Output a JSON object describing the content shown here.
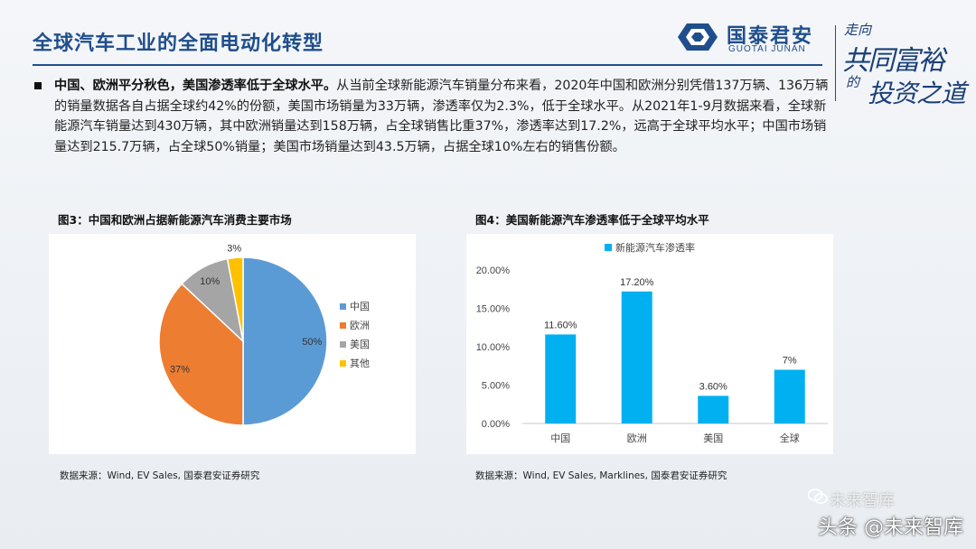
{
  "header": {
    "title": "全球汽车工业的全面电动化转型",
    "logo_cn": "国泰君安",
    "logo_en": "GUOTAI JUNAN",
    "slogan": [
      "走向",
      "共同富裕",
      "的",
      "投资之道"
    ]
  },
  "summary": {
    "lead": "中国、欧洲平分秋色，美国渗透率低于全球水平。",
    "body": "从当前全球新能源汽车销量分布来看，2020年中国和欧洲分别凭借137万辆、136万辆的销量数据各自占据全球约42%的份额，美国市场销量为33万辆，渗透率仅为2.3%，低于全球水平。从2021年1-9月数据来看，全球新能源汽车销量达到430万辆，其中欧洲销量达到158万辆，占全球销售比重37%，渗透率达到17.2%，远高于全球平均水平；中国市场销量达到215.7万辆，占全球50%销量；美国市场销量达到43.5万辆，占据全球10%左右的销售份额。"
  },
  "figure3": {
    "title": "图3：中国和欧洲占据新能源汽车消费主要市场",
    "source": "数据来源：Wind, EV Sales, 国泰君安证券研究"
  },
  "figure4": {
    "title": "图4：美国新能源汽车渗透率低于全球平均水平",
    "source": "数据来源：Wind, EV Sales, Marklines, 国泰君安证券研究"
  },
  "watermark": {
    "text": "头条 @未来智库",
    "faint": "未来智库"
  },
  "colors": {
    "brand": "#1f4e8c",
    "china": "#5b9bd5",
    "europe": "#ed7d31",
    "usa": "#a5a5a5",
    "other": "#ffc000",
    "bar": "#00b0f0"
  },
  "chart_data": [
    {
      "type": "pie",
      "title": "",
      "categories": [
        "中国",
        "欧洲",
        "美国",
        "其他"
      ],
      "values": [
        50,
        37,
        10,
        3
      ],
      "value_labels": [
        "50%",
        "37%",
        "10%",
        "3%"
      ],
      "legend": "right"
    },
    {
      "type": "bar",
      "title": "",
      "categories": [
        "中国",
        "欧洲",
        "美国",
        "全球"
      ],
      "series": [
        {
          "name": "新能源汽车渗透率",
          "values": [
            11.6,
            17.2,
            3.6,
            7
          ]
        }
      ],
      "value_labels": [
        "11.60%",
        "17.20%",
        "3.60%",
        "7%"
      ],
      "yticks": [
        "0.00%",
        "5.00%",
        "10.00%",
        "15.00%",
        "20.00%"
      ],
      "ylim": [
        0,
        20
      ],
      "grid": false,
      "legend": "top"
    }
  ]
}
